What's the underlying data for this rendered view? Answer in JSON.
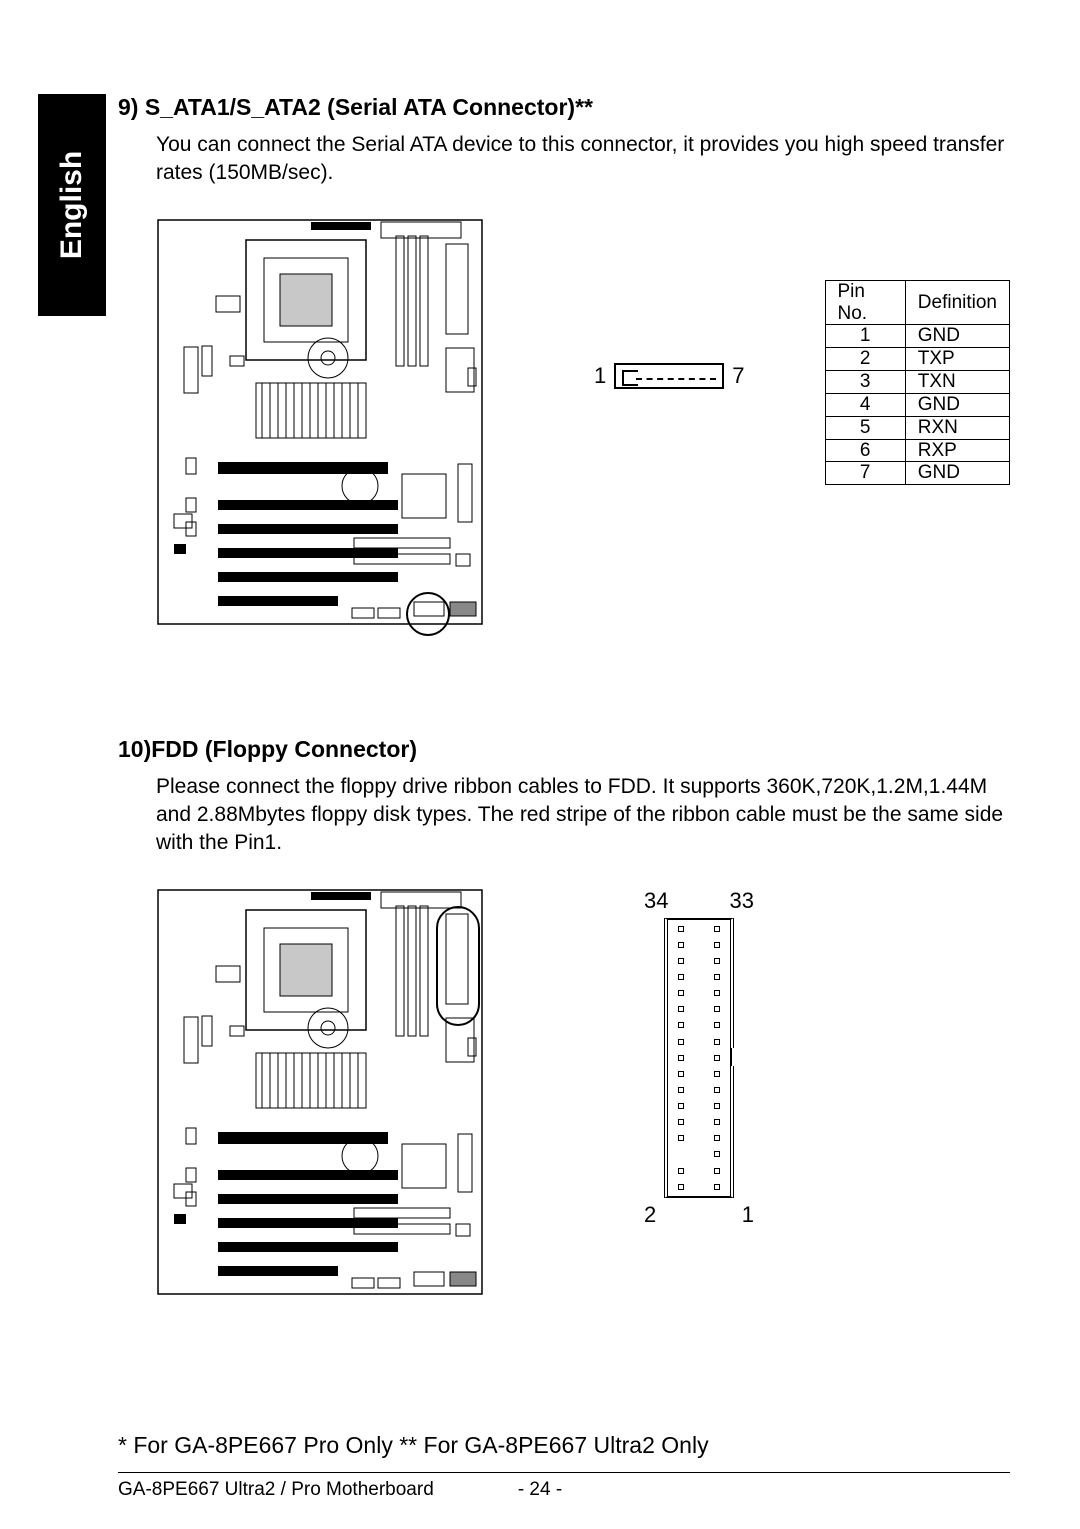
{
  "tab_label": "English",
  "section9": {
    "title": "9)  S_ATA1/S_ATA2 (Serial ATA Connector)**",
    "body": "You can connect the Serial ATA device to this connector, it provides you high speed transfer rates (150MB/sec).",
    "pin_left": "1",
    "pin_right": "7",
    "table": {
      "headers": [
        "Pin No.",
        "Definition"
      ],
      "rows": [
        [
          "1",
          "GND"
        ],
        [
          "2",
          "TXP"
        ],
        [
          "3",
          "TXN"
        ],
        [
          "4",
          "GND"
        ],
        [
          "5",
          "RXN"
        ],
        [
          "6",
          "RXP"
        ],
        [
          "7",
          "GND"
        ]
      ]
    }
  },
  "section10": {
    "title": "10)FDD (Floppy Connector)",
    "body": "Please connect the floppy drive ribbon cables to FDD. It supports 360K,720K,1.2M,1.44M and 2.88Mbytes floppy disk types. The red stripe of the ribbon cable must be the same side with the Pin1.",
    "labels": {
      "tl": "34",
      "tr": "33",
      "bl": "2",
      "br": "1"
    },
    "fdd_rows": 17,
    "missing_left_row_index": 14
  },
  "footnote": "* For GA-8PE667 Pro Only  ** For GA-8PE667 Ultra2 Only",
  "footer_left": "GA-8PE667 Ultra2 / Pro Motherboard",
  "footer_page": "- 24 -",
  "mobo": {
    "outline_color": "#000000",
    "bg": "#ffffff"
  }
}
